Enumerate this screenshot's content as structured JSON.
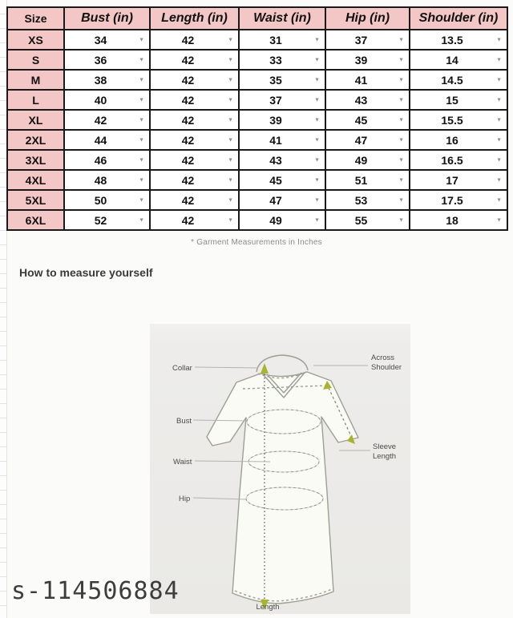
{
  "size_chart": {
    "headers": [
      "Size",
      "Bust (in)",
      "Length (in)",
      "Waist (in)",
      "Hip (in)",
      "Shoulder (in)"
    ],
    "rows": [
      [
        "XS",
        "34",
        "42",
        "31",
        "37",
        "13.5"
      ],
      [
        "S",
        "36",
        "42",
        "33",
        "39",
        "14"
      ],
      [
        "M",
        "38",
        "42",
        "35",
        "41",
        "14.5"
      ],
      [
        "L",
        "40",
        "42",
        "37",
        "43",
        "15"
      ],
      [
        "XL",
        "42",
        "42",
        "39",
        "45",
        "15.5"
      ],
      [
        "2XL",
        "44",
        "42",
        "41",
        "47",
        "16"
      ],
      [
        "3XL",
        "46",
        "42",
        "43",
        "49",
        "16.5"
      ],
      [
        "4XL",
        "48",
        "42",
        "45",
        "51",
        "17"
      ],
      [
        "5XL",
        "50",
        "42",
        "47",
        "53",
        "17.5"
      ],
      [
        "6XL",
        "52",
        "42",
        "49",
        "55",
        "18"
      ]
    ],
    "dropdown_icon": "▼",
    "footnote": "* Garment Measurements in Inches"
  },
  "measure_section": {
    "heading": "How to measure yourself",
    "diagram_labels": {
      "collar": "Collar",
      "bust": "Bust",
      "waist": "Waist",
      "hip": "Hip",
      "across_shoulder_line1": "Across",
      "across_shoulder_line2": "Shoulder",
      "sleeve_length_line1": "Sleeve",
      "sleeve_length_line2": "Length",
      "length": "Length"
    }
  },
  "footer": {
    "product_id": "s-114506884"
  },
  "colors": {
    "header_pink": "#f2c7c5",
    "table_border": "#1a1a1a",
    "dropdown_arrow_gray": "#8d8d8d",
    "measure_arrow_green": "#a9b42c",
    "diagram_card_gray": "#eceae7"
  }
}
